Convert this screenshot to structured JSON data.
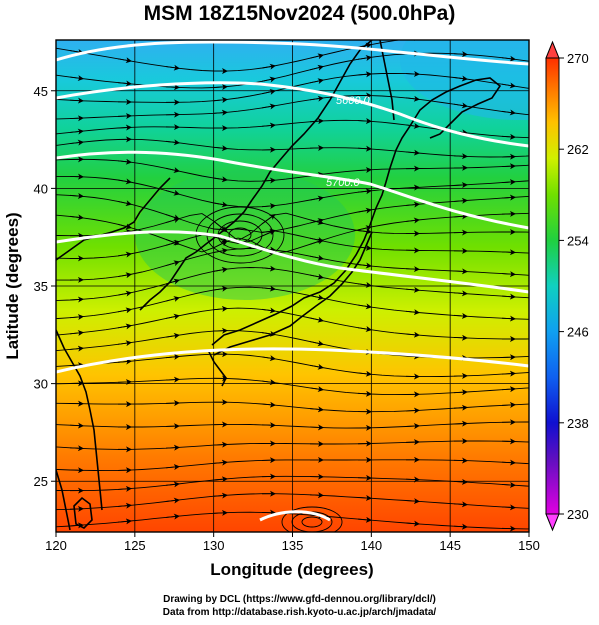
{
  "title": "MSM 18Z15Nov2024 (500.0hPa)",
  "xlabel": "Longitude (degrees)",
  "ylabel": "Latitude  (degrees)",
  "x_ticks": [
    "120",
    "125",
    "130",
    "135",
    "140",
    "145",
    "150"
  ],
  "y_ticks": [
    "25",
    "30",
    "35",
    "40",
    "45"
  ],
  "colorbar_ticks": [
    "270",
    "262",
    "254",
    "246",
    "238",
    "230"
  ],
  "contour_labels": [
    "5600.0",
    "5700.0"
  ],
  "credits": {
    "line1": "Drawing by DCL (https://www.gfd-dennou.org/library/dcl/)",
    "line2": "Data from http://database.rish.kyoto-u.ac.jp/arch/jmadata/"
  },
  "map": {
    "lon_range": [
      120,
      150
    ],
    "lat_range": [
      22.4,
      47.6
    ],
    "field": "temperature (K), shaded",
    "colorbar_range": [
      230,
      270
    ],
    "contour_field": "geopotential height (m)",
    "streamlines": true,
    "coastlines": true,
    "grid": true
  }
}
